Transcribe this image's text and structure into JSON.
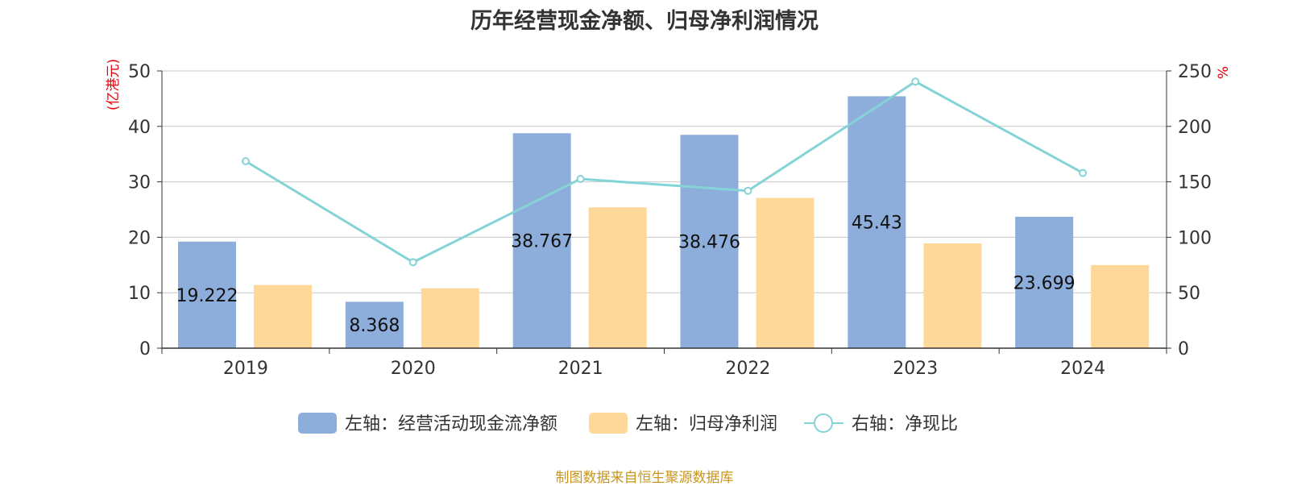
{
  "title": "历年经营现金净额、归母净利润情况",
  "source": "制图数据来自恒生聚源数据库",
  "colors": {
    "cash_bar": "#8daedb",
    "profit_bar": "#fed898",
    "ratio_line": "#84d4d7",
    "grid": "#c8c8c8",
    "axis": "#333333",
    "unit": "#e8000b"
  },
  "chart_data": {
    "type": "bar",
    "title": "历年经营现金净额、归母净利润情况",
    "categories": [
      "2019",
      "2020",
      "2021",
      "2022",
      "2023",
      "2024"
    ],
    "left_axis": {
      "unit": "亿港元",
      "min": 0,
      "max": 50,
      "ticks": [
        0,
        10,
        20,
        30,
        40,
        50
      ]
    },
    "right_axis": {
      "unit": "%",
      "min": 0,
      "max": 250,
      "ticks": [
        0,
        50,
        100,
        150,
        200,
        250
      ]
    },
    "grid": true,
    "legend_position": "bottom",
    "series": [
      {
        "name": "左轴：经营活动现金流净额",
        "type": "bar",
        "axis": "left",
        "values": [
          19.222,
          8.368,
          38.767,
          38.476,
          45.43,
          23.699
        ],
        "labels": [
          "19.222",
          "8.368",
          "38.767",
          "38.476",
          "45.43",
          "23.699"
        ]
      },
      {
        "name": "左轴：归母净利润",
        "type": "bar",
        "axis": "left",
        "values": [
          11.4,
          10.8,
          25.4,
          27.1,
          18.9,
          15.0
        ]
      },
      {
        "name": "右轴：净现比",
        "type": "line",
        "axis": "right",
        "values": [
          168.6,
          77.5,
          152.6,
          141.9,
          240.4,
          158.0
        ]
      }
    ]
  }
}
